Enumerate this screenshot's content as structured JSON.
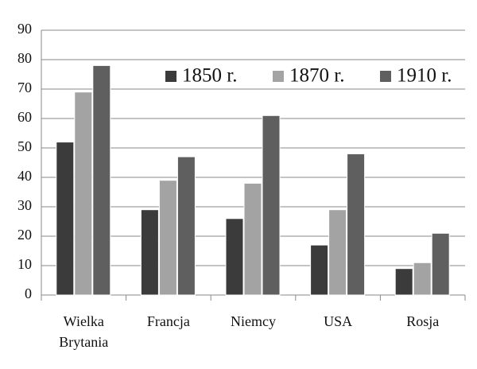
{
  "chart_data": {
    "type": "bar",
    "categories": [
      "Wielka Brytania",
      "Francja",
      "Niemcy",
      "USA",
      "Rosja"
    ],
    "series": [
      {
        "name": "1850 r.",
        "color": "#3b3b3b",
        "values": [
          52,
          29,
          26,
          17,
          9
        ]
      },
      {
        "name": "1870 r.",
        "color": "#a3a3a3",
        "values": [
          69,
          39,
          38,
          29,
          11
        ]
      },
      {
        "name": "1910 r.",
        "color": "#5f5f5f",
        "values": [
          78,
          47,
          61,
          48,
          21
        ]
      }
    ],
    "ylim": [
      0,
      90
    ],
    "yticks": [
      0,
      10,
      20,
      30,
      40,
      50,
      60,
      70,
      80,
      90
    ],
    "grid": true,
    "legend": "top-right"
  }
}
